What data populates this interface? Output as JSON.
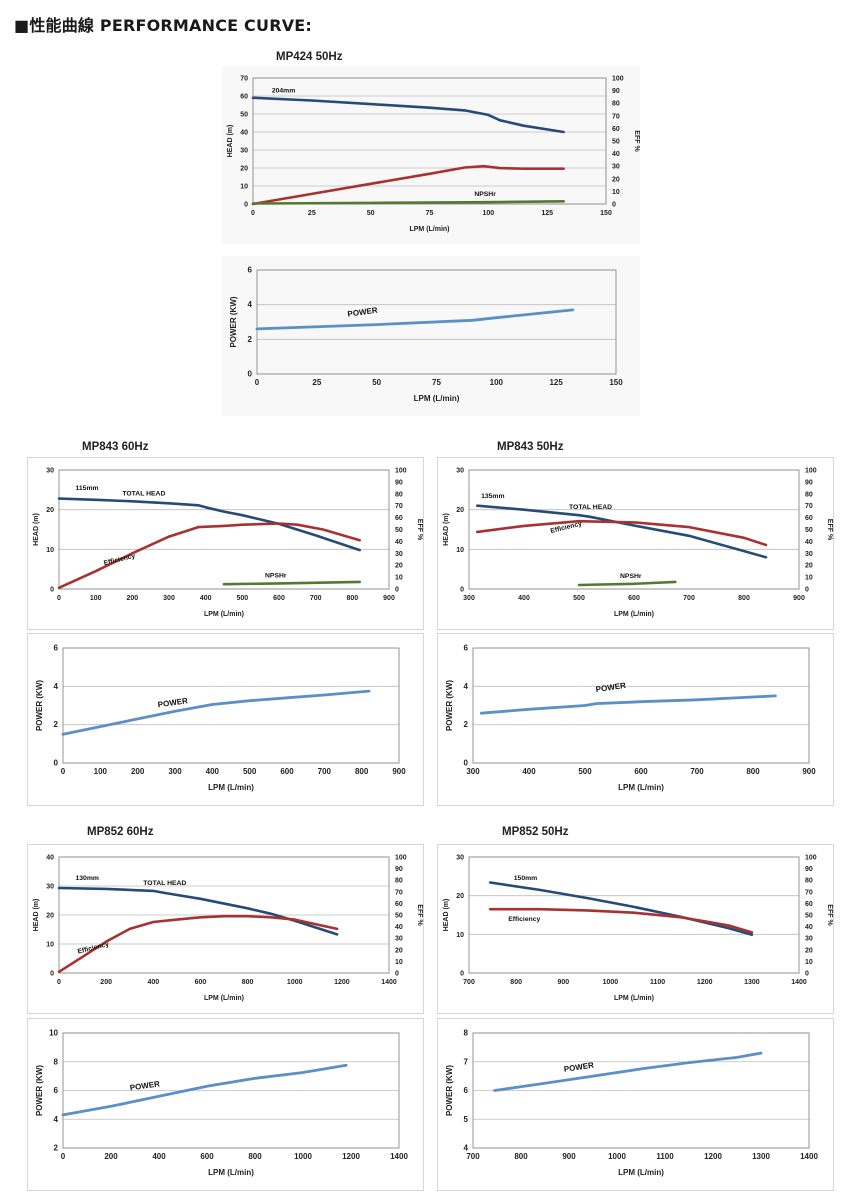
{
  "page": {
    "heading": "■性能曲線 PERFORMANCE CURVE:",
    "colors": {
      "head": "#264b78",
      "eff": "#a83232",
      "npsh": "#537a32",
      "power": "#5b8fc7",
      "grid": "#bdbdbd"
    }
  },
  "charts": [
    {
      "id": "mp424_50",
      "title": "MP424  50Hz",
      "head": {
        "type": "line",
        "xlim": [
          0,
          150
        ],
        "xticks": [
          0,
          25,
          50,
          75,
          100,
          125,
          150
        ],
        "ylim": [
          0,
          70
        ],
        "yticks": [
          0,
          10,
          20,
          30,
          40,
          50,
          60,
          70
        ],
        "y2lim": [
          0,
          100
        ],
        "y2ticks": [
          0,
          10,
          20,
          30,
          40,
          50,
          60,
          70,
          80,
          90,
          100
        ],
        "xlabel": "LPM (L/min)",
        "ylabel": "HEAD (m)",
        "y2label": "EFF %",
        "series": [
          {
            "name": "head",
            "label": "",
            "axis": "y",
            "x": [
              0,
              25,
              50,
              75,
              90,
              100,
              105,
              115,
              132
            ],
            "y": [
              59,
              57.5,
              55.5,
              53.5,
              52,
              49.5,
              46.5,
              43.5,
              40
            ]
          },
          {
            "name": "eff",
            "label": "",
            "axis": "y2",
            "x": [
              0,
              25,
              50,
              75,
              90,
              98,
              105,
              115,
              132
            ],
            "y": [
              0,
              8,
              16,
              24,
              29,
              30,
              28.5,
              28,
              28
            ]
          },
          {
            "name": "npsh",
            "label": "NPSHr",
            "axis": "y",
            "x": [
              0,
              50,
              100,
              132
            ],
            "y": [
              0.3,
              0.6,
              1.0,
              1.5
            ]
          }
        ],
        "annotations": [
          {
            "text": "204mm",
            "x": 8,
            "y": 62
          }
        ]
      },
      "power": {
        "type": "line",
        "xlim": [
          0,
          150
        ],
        "xticks": [
          0,
          25,
          50,
          75,
          100,
          125,
          150
        ],
        "ylim": [
          0,
          6
        ],
        "yticks": [
          0,
          2,
          4,
          6
        ],
        "xlabel": "LPM  (L/min)",
        "ylabel": "POWER (KW)",
        "series": [
          {
            "name": "power",
            "label": "POWER",
            "x": [
              0,
              50,
              90,
              100,
              132
            ],
            "y": [
              2.6,
              2.85,
              3.1,
              3.25,
              3.7
            ]
          }
        ],
        "annotations": [
          {
            "text": "POWER",
            "x": 38,
            "y": 3.3
          }
        ]
      }
    },
    {
      "id": "mp843_60",
      "title": "MP843  60Hz",
      "head": {
        "type": "line",
        "xlim": [
          0,
          900
        ],
        "xticks": [
          0,
          100,
          200,
          300,
          400,
          500,
          600,
          700,
          800,
          900
        ],
        "ylim": [
          0,
          30
        ],
        "yticks": [
          0,
          10,
          20,
          30
        ],
        "y2lim": [
          0,
          100
        ],
        "y2ticks": [
          0,
          10,
          20,
          30,
          40,
          50,
          60,
          70,
          80,
          90,
          100
        ],
        "xlabel": "LPM (L/min)",
        "ylabel": "HEAD (m)",
        "y2label": "EFF %",
        "series": [
          {
            "name": "head",
            "label": "TOTAL HEAD",
            "axis": "y",
            "x": [
              0,
              100,
              200,
              300,
              380,
              400,
              450,
              500,
              600,
              700,
              820
            ],
            "y": [
              22.8,
              22.5,
              22.1,
              21.6,
              21.1,
              20.6,
              19.5,
              18.6,
              16.4,
              13.5,
              9.8
            ]
          },
          {
            "name": "eff",
            "label": "Efficiency",
            "axis": "y2",
            "x": [
              0,
              100,
              200,
              300,
              380,
              450,
              500,
              600,
              650,
              720,
              820
            ],
            "y": [
              1,
              15,
              30,
              44,
              52,
              53,
              54,
              55,
              54,
              50,
              41
            ]
          },
          {
            "name": "npsh",
            "label": "NPSHr",
            "axis": "y",
            "x": [
              450,
              600,
              820
            ],
            "y": [
              1.2,
              1.4,
              1.8
            ]
          }
        ],
        "annotations": [
          {
            "text": "115mm",
            "x": 45,
            "y": 25
          }
        ]
      },
      "power": {
        "type": "line",
        "xlim": [
          0,
          900
        ],
        "xticks": [
          0,
          100,
          200,
          300,
          400,
          500,
          600,
          700,
          800,
          900
        ],
        "ylim": [
          0,
          6
        ],
        "yticks": [
          0,
          2,
          4,
          6
        ],
        "xlabel": "LPM  (L/min)",
        "ylabel": "POWER (KW)",
        "series": [
          {
            "name": "power",
            "label": "POWER",
            "x": [
              0,
              100,
              200,
              300,
              400,
              500,
              600,
              700,
              820
            ],
            "y": [
              1.5,
              1.9,
              2.3,
              2.7,
              3.05,
              3.25,
              3.4,
              3.55,
              3.75
            ]
          }
        ],
        "annotations": [
          {
            "text": "POWER",
            "x": 255,
            "y": 2.9
          }
        ]
      }
    },
    {
      "id": "mp843_50",
      "title": "MP843  50Hz",
      "head": {
        "type": "line",
        "xlim": [
          300,
          900
        ],
        "xticks": [
          300,
          400,
          500,
          600,
          700,
          800,
          900
        ],
        "ylim": [
          0,
          30
        ],
        "yticks": [
          0,
          10,
          20,
          30
        ],
        "y2lim": [
          0,
          100
        ],
        "y2ticks": [
          0,
          10,
          20,
          30,
          40,
          50,
          60,
          70,
          80,
          90,
          100
        ],
        "xlabel": "LPM (L/min)",
        "ylabel": "HEAD (m)",
        "y2label": "EFF %",
        "series": [
          {
            "name": "head",
            "label": "TOTAL HEAD",
            "axis": "y",
            "x": [
              315,
              400,
              500,
              520,
              600,
              700,
              840
            ],
            "y": [
              21,
              20,
              18.6,
              18.2,
              16,
              13.4,
              8
            ]
          },
          {
            "name": "eff",
            "label": "Efficiency",
            "axis": "y2",
            "x": [
              315,
              400,
              500,
              600,
              700,
              800,
              840
            ],
            "y": [
              48,
              53,
              57,
              56,
              52,
              43,
              37
            ]
          },
          {
            "name": "npsh",
            "label": "NPSHr",
            "axis": "y",
            "x": [
              500,
              600,
              675
            ],
            "y": [
              1.0,
              1.3,
              1.8
            ]
          }
        ],
        "annotations": [
          {
            "text": "135mm",
            "x": 322,
            "y": 23
          }
        ]
      },
      "power": {
        "type": "line",
        "xlim": [
          300,
          900
        ],
        "xticks": [
          300,
          400,
          500,
          600,
          700,
          800,
          900
        ],
        "ylim": [
          0,
          6
        ],
        "yticks": [
          0,
          2,
          4,
          6
        ],
        "xlabel": "LPM  (L/min)",
        "ylabel": "POWER (KW)",
        "series": [
          {
            "name": "power",
            "label": "POWER",
            "x": [
              315,
              400,
              500,
              520,
              600,
              700,
              840
            ],
            "y": [
              2.6,
              2.8,
              3.0,
              3.1,
              3.2,
              3.3,
              3.5
            ]
          }
        ],
        "annotations": [
          {
            "text": "POWER",
            "x": 520,
            "y": 3.7
          }
        ]
      }
    },
    {
      "id": "mp852_60",
      "title": "MP852  60Hz",
      "head": {
        "type": "line",
        "xlim": [
          0,
          1400
        ],
        "xticks": [
          0,
          200,
          400,
          600,
          800,
          1000,
          1200,
          1400
        ],
        "ylim": [
          0,
          40
        ],
        "yticks": [
          0,
          10,
          20,
          30,
          40
        ],
        "y2lim": [
          0,
          100
        ],
        "y2ticks": [
          0,
          10,
          20,
          30,
          40,
          50,
          60,
          70,
          80,
          90,
          100
        ],
        "xlabel": "LPM (L/min)",
        "ylabel": "HEAD (m)",
        "y2label": "EFF %",
        "series": [
          {
            "name": "head",
            "label": "TOTAL HEAD",
            "axis": "y",
            "x": [
              0,
              200,
              400,
              450,
              600,
              800,
              900,
              1000,
              1180
            ],
            "y": [
              29.3,
              29,
              28.3,
              27.6,
              25.6,
              22.3,
              20.4,
              18,
              13.3
            ]
          },
          {
            "name": "eff",
            "label": "Efficiency",
            "axis": "y2",
            "x": [
              0,
              100,
              200,
              300,
              400,
              500,
              600,
              700,
              800,
              900,
              1000,
              1180
            ],
            "y": [
              1,
              14,
              27,
              38,
              44,
              46,
              48,
              49,
              49,
              48,
              46,
              38
            ]
          }
        ],
        "annotations": [
          {
            "text": "130mm",
            "x": 70,
            "y": 32
          }
        ]
      },
      "power": {
        "type": "line",
        "xlim": [
          0,
          1400
        ],
        "xticks": [
          0,
          200,
          400,
          600,
          800,
          1000,
          1200,
          1400
        ],
        "ylim": [
          2,
          10
        ],
        "yticks": [
          2,
          4,
          6,
          8,
          10
        ],
        "xlabel": "LPM  (L/min)",
        "ylabel": "POWER (KW)",
        "series": [
          {
            "name": "power",
            "label": "POWER",
            "x": [
              0,
              200,
              400,
              600,
              800,
              1000,
              1180
            ],
            "y": [
              4.3,
              4.9,
              5.6,
              6.3,
              6.85,
              7.25,
              7.75
            ]
          }
        ],
        "annotations": [
          {
            "text": "POWER",
            "x": 280,
            "y": 6.0
          }
        ]
      }
    },
    {
      "id": "mp852_50",
      "title": "MP852  50Hz",
      "head": {
        "type": "line",
        "xlim": [
          700,
          1400
        ],
        "xticks": [
          700,
          800,
          900,
          1000,
          1100,
          1200,
          1300,
          1400
        ],
        "ylim": [
          0,
          30
        ],
        "yticks": [
          0,
          10,
          20,
          30
        ],
        "y2lim": [
          0,
          100
        ],
        "y2ticks": [
          0,
          10,
          20,
          30,
          40,
          50,
          60,
          70,
          80,
          90,
          100
        ],
        "xlabel": "LPM (L/min)",
        "ylabel": "HEAD (m)",
        "y2label": "EFF %",
        "series": [
          {
            "name": "head",
            "label": "",
            "axis": "y",
            "x": [
              745,
              850,
              950,
              1050,
              1150,
              1250,
              1300
            ],
            "y": [
              23.4,
              21.5,
              19.4,
              17.1,
              14.5,
              11.6,
              9.9
            ]
          },
          {
            "name": "eff",
            "label": "Efficiency",
            "axis": "y2",
            "x": [
              745,
              850,
              950,
              1050,
              1150,
              1250,
              1300
            ],
            "y": [
              55,
              55,
              54,
              52,
              48,
              41,
              35
            ]
          }
        ],
        "annotations": [
          {
            "text": "150mm",
            "x": 795,
            "y": 24
          }
        ]
      },
      "power": {
        "type": "line",
        "xlim": [
          700,
          1400
        ],
        "xticks": [
          700,
          800,
          900,
          1000,
          1100,
          1200,
          1300,
          1400
        ],
        "ylim": [
          4,
          8
        ],
        "yticks": [
          4,
          5,
          6,
          7,
          8
        ],
        "xlabel": "LPM  (L/min)",
        "ylabel": "POWER (KW)",
        "series": [
          {
            "name": "power",
            "label": "POWER",
            "x": [
              745,
              850,
              950,
              1050,
              1150,
              1250,
              1300
            ],
            "y": [
              6.0,
              6.25,
              6.5,
              6.75,
              6.97,
              7.15,
              7.3
            ]
          }
        ],
        "annotations": [
          {
            "text": "POWER",
            "x": 890,
            "y": 6.65
          }
        ]
      }
    }
  ]
}
